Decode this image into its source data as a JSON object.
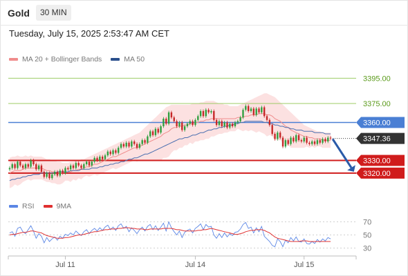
{
  "header": {
    "title": "Gold",
    "timeframe": "30 MIN",
    "timestamp": "Tuesday, July 15, 2025 2:53:47 AM CET"
  },
  "price_legend": [
    {
      "label": "MA 20 + Bollinger Bands",
      "color": "#f08c8c"
    },
    {
      "label": "MA 50",
      "color": "#2a4f8c"
    }
  ],
  "rsi_legend": [
    {
      "label": "RSI",
      "color": "#5b86e5"
    },
    {
      "label": "9MA",
      "color": "#e03030"
    }
  ],
  "colors": {
    "up": "#2e9e3e",
    "down": "#c62828",
    "ma20": "#f08c8c",
    "band_fill": "#fbdcdc",
    "ma50": "#4a6fb0",
    "resistance": "#9ccc65",
    "resistance_text": "#5a9a1a",
    "pivot": "#4a7fd4",
    "support": "#d01c1c",
    "current": "#333333",
    "arrow": "#2a5aa8",
    "rsi": "#5b86e5",
    "rsi_ma": "#e03030"
  },
  "chart_data": [
    {
      "type": "candlestick",
      "title": "",
      "x_labels": [
        "Jul 11",
        "Jul 14",
        "Jul 15"
      ],
      "ylim": [
        3303,
        3405
      ],
      "levels": [
        {
          "value": 3395.0,
          "label": "3395.00",
          "kind": "resistance"
        },
        {
          "value": 3375.0,
          "label": "3375.00",
          "kind": "resistance"
        },
        {
          "value": 3360.0,
          "label": "3360.00",
          "kind": "pivot"
        },
        {
          "value": 3347.36,
          "label": "3347.36",
          "kind": "current"
        },
        {
          "value": 3330.0,
          "label": "3330.00",
          "kind": "support"
        },
        {
          "value": 3320.0,
          "label": "3320.00",
          "kind": "support"
        }
      ],
      "forecast_arrow": {
        "from": 3348,
        "to": 3321
      },
      "close": [
        3324,
        3327,
        3324,
        3329,
        3326,
        3324,
        3327,
        3325,
        3330,
        3327,
        3323,
        3326,
        3321,
        3317,
        3320,
        3316,
        3319,
        3321,
        3318,
        3322,
        3320,
        3324,
        3323,
        3326,
        3324,
        3328,
        3326,
        3324,
        3327,
        3329,
        3326,
        3329,
        3332,
        3330,
        3333,
        3331,
        3334,
        3337,
        3335,
        3338,
        3336,
        3340,
        3343,
        3341,
        3344,
        3341,
        3345,
        3343,
        3340,
        3343,
        3346,
        3344,
        3349,
        3353,
        3350,
        3355,
        3352,
        3357,
        3363,
        3359,
        3368,
        3364,
        3361,
        3357,
        3360,
        3354,
        3357,
        3359,
        3361,
        3358,
        3362,
        3365,
        3369,
        3365,
        3370,
        3368,
        3369,
        3362,
        3358,
        3361,
        3357,
        3360,
        3356,
        3359,
        3357,
        3360,
        3361,
        3364,
        3370,
        3373,
        3369,
        3371,
        3366,
        3371,
        3368,
        3372,
        3365,
        3362,
        3358,
        3351,
        3347,
        3352,
        3348,
        3341,
        3346,
        3343,
        3348,
        3345,
        3350,
        3346,
        3345,
        3348,
        3344,
        3343,
        3345,
        3343,
        3346,
        3344,
        3347,
        3345,
        3348,
        3347.36
      ],
      "ma20": [
        3320,
        3321,
        3322,
        3322,
        3322,
        3323,
        3324,
        3324,
        3324,
        3324,
        3324,
        3324,
        3324,
        3323,
        3322,
        3322,
        3321,
        3321,
        3320,
        3320,
        3320,
        3321,
        3321,
        3321,
        3322,
        3322,
        3323,
        3323,
        3324,
        3325,
        3325,
        3326,
        3327,
        3327,
        3328,
        3329,
        3330,
        3331,
        3332,
        3333,
        3333,
        3334,
        3335,
        3336,
        3337,
        3338,
        3339,
        3340,
        3340,
        3341,
        3342,
        3343,
        3344,
        3345,
        3346,
        3347,
        3348,
        3349,
        3351,
        3352,
        3353,
        3355,
        3356,
        3356,
        3357,
        3357,
        3358,
        3358,
        3359,
        3359,
        3360,
        3360,
        3361,
        3361,
        3362,
        3362,
        3363,
        3363,
        3363,
        3363,
        3363,
        3363,
        3363,
        3363,
        3363,
        3363,
        3364,
        3364,
        3364,
        3365,
        3365,
        3366,
        3366,
        3366,
        3367,
        3367,
        3367,
        3366,
        3366,
        3365,
        3363,
        3362,
        3361,
        3359,
        3357,
        3356,
        3354,
        3353,
        3352,
        3351,
        3350,
        3349,
        3349,
        3348,
        3348,
        3347,
        3347,
        3347,
        3346,
        3346,
        3346,
        3346
      ],
      "ma50": [
        3314,
        3315,
        3315,
        3316,
        3316,
        3317,
        3317,
        3318,
        3318,
        3319,
        3319,
        3319,
        3320,
        3320,
        3320,
        3320,
        3320,
        3320,
        3321,
        3321,
        3321,
        3321,
        3321,
        3322,
        3322,
        3322,
        3322,
        3323,
        3323,
        3323,
        3323,
        3324,
        3324,
        3324,
        3325,
        3325,
        3326,
        3326,
        3327,
        3327,
        3328,
        3328,
        3329,
        3329,
        3330,
        3331,
        3331,
        3332,
        3332,
        3333,
        3334,
        3335,
        3335,
        3336,
        3337,
        3338,
        3339,
        3340,
        3341,
        3342,
        3343,
        3344,
        3345,
        3346,
        3347,
        3347,
        3348,
        3348,
        3349,
        3350,
        3350,
        3351,
        3352,
        3352,
        3353,
        3354,
        3354,
        3355,
        3355,
        3356,
        3356,
        3357,
        3357,
        3358,
        3358,
        3359,
        3359,
        3360,
        3360,
        3361,
        3361,
        3361,
        3361,
        3361,
        3361,
        3361,
        3360,
        3360,
        3359,
        3359,
        3358,
        3358,
        3357,
        3357,
        3356,
        3356,
        3355,
        3355,
        3354,
        3354,
        3354,
        3353,
        3353,
        3353,
        3353,
        3352,
        3352,
        3352,
        3352,
        3351,
        3351,
        3351
      ],
      "band_upper": [
        3332,
        3333,
        3333,
        3334,
        3333,
        3333,
        3334,
        3333,
        3334,
        3333,
        3333,
        3333,
        3333,
        3332,
        3331,
        3331,
        3330,
        3330,
        3329,
        3329,
        3328,
        3328,
        3328,
        3329,
        3329,
        3330,
        3330,
        3331,
        3331,
        3332,
        3333,
        3334,
        3335,
        3336,
        3337,
        3338,
        3339,
        3340,
        3341,
        3342,
        3343,
        3344,
        3345,
        3346,
        3347,
        3348,
        3349,
        3350,
        3351,
        3352,
        3354,
        3356,
        3358,
        3360,
        3362,
        3364,
        3366,
        3368,
        3370,
        3372,
        3373,
        3374,
        3374,
        3374,
        3374,
        3374,
        3374,
        3374,
        3374,
        3375,
        3375,
        3375,
        3376,
        3376,
        3377,
        3377,
        3377,
        3377,
        3376,
        3375,
        3375,
        3374,
        3374,
        3373,
        3373,
        3373,
        3373,
        3374,
        3375,
        3376,
        3377,
        3378,
        3379,
        3380,
        3381,
        3382,
        3383,
        3383,
        3382,
        3381,
        3380,
        3378,
        3376,
        3374,
        3372,
        3370,
        3368,
        3366,
        3364,
        3362,
        3360,
        3358,
        3357,
        3356,
        3355,
        3354,
        3353,
        3353,
        3352,
        3352,
        3352,
        3352
      ],
      "band_lower": [
        3308,
        3309,
        3311,
        3310,
        3311,
        3313,
        3314,
        3315,
        3314,
        3315,
        3315,
        3315,
        3315,
        3314,
        3313,
        3313,
        3312,
        3312,
        3311,
        3311,
        3312,
        3314,
        3314,
        3313,
        3315,
        3314,
        3316,
        3315,
        3317,
        3318,
        3317,
        3318,
        3319,
        3318,
        3319,
        3320,
        3321,
        3322,
        3323,
        3324,
        3323,
        3324,
        3325,
        3326,
        3327,
        3328,
        3329,
        3330,
        3329,
        3330,
        3330,
        3330,
        3330,
        3330,
        3330,
        3330,
        3330,
        3330,
        3332,
        3332,
        3333,
        3336,
        3338,
        3338,
        3340,
        3340,
        3342,
        3342,
        3344,
        3343,
        3345,
        3345,
        3346,
        3346,
        3347,
        3347,
        3349,
        3349,
        3350,
        3351,
        3351,
        3352,
        3352,
        3353,
        3353,
        3353,
        3355,
        3354,
        3353,
        3354,
        3353,
        3354,
        3353,
        3352,
        3353,
        3352,
        3351,
        3349,
        3350,
        3349,
        3346,
        3346,
        3346,
        3344,
        3342,
        3342,
        3340,
        3340,
        3340,
        3340,
        3340,
        3340,
        3341,
        3340,
        3341,
        3340,
        3341,
        3341,
        3340,
        3340,
        3340,
        3340
      ]
    },
    {
      "type": "line",
      "title": "",
      "ylim": [
        20,
        80
      ],
      "ticks": [
        {
          "value": 70,
          "label": "70"
        },
        {
          "value": 50,
          "label": "50"
        },
        {
          "value": 30,
          "label": "30"
        }
      ],
      "rsi": [
        53,
        55,
        48,
        60,
        62,
        55,
        52,
        58,
        64,
        56,
        45,
        52,
        48,
        38,
        46,
        40,
        44,
        47,
        42,
        48,
        45,
        51,
        49,
        53,
        50,
        56,
        52,
        49,
        55,
        58,
        52,
        57,
        60,
        56,
        61,
        57,
        62,
        65,
        58,
        62,
        57,
        64,
        67,
        60,
        63,
        55,
        61,
        57,
        52,
        58,
        62,
        56,
        63,
        66,
        58,
        64,
        57,
        62,
        68,
        56,
        70,
        61,
        55,
        50,
        56,
        46,
        54,
        57,
        59,
        53,
        60,
        63,
        67,
        58,
        66,
        62,
        63,
        50,
        45,
        52,
        46,
        53,
        47,
        52,
        49,
        54,
        55,
        59,
        66,
        69,
        60,
        62,
        53,
        61,
        55,
        63,
        48,
        44,
        40,
        34,
        32,
        44,
        40,
        32,
        42,
        38,
        46,
        41,
        47,
        40,
        39,
        44,
        37,
        36,
        40,
        37,
        43,
        39,
        44,
        41,
        46,
        44
      ],
      "rsi_ma": [
        50,
        51,
        51,
        52,
        53,
        54,
        54,
        55,
        56,
        56,
        55,
        54,
        53,
        51,
        49,
        48,
        47,
        46,
        45,
        45,
        45,
        46,
        46,
        47,
        48,
        49,
        50,
        50,
        51,
        52,
        53,
        54,
        55,
        55,
        56,
        57,
        58,
        58,
        59,
        59,
        59,
        60,
        60,
        61,
        61,
        61,
        60,
        60,
        59,
        59,
        59,
        58,
        58,
        59,
        59,
        59,
        59,
        59,
        60,
        60,
        60,
        60,
        59,
        58,
        58,
        57,
        56,
        56,
        56,
        56,
        56,
        57,
        57,
        58,
        58,
        59,
        60,
        59,
        58,
        57,
        56,
        55,
        54,
        53,
        52,
        51,
        51,
        52,
        53,
        55,
        56,
        57,
        57,
        58,
        58,
        58,
        57,
        55,
        53,
        50,
        47,
        45,
        44,
        43,
        42,
        41,
        40,
        40,
        40,
        40,
        41,
        41,
        41,
        40,
        40,
        40,
        40,
        40,
        40,
        40,
        40,
        40
      ]
    }
  ]
}
